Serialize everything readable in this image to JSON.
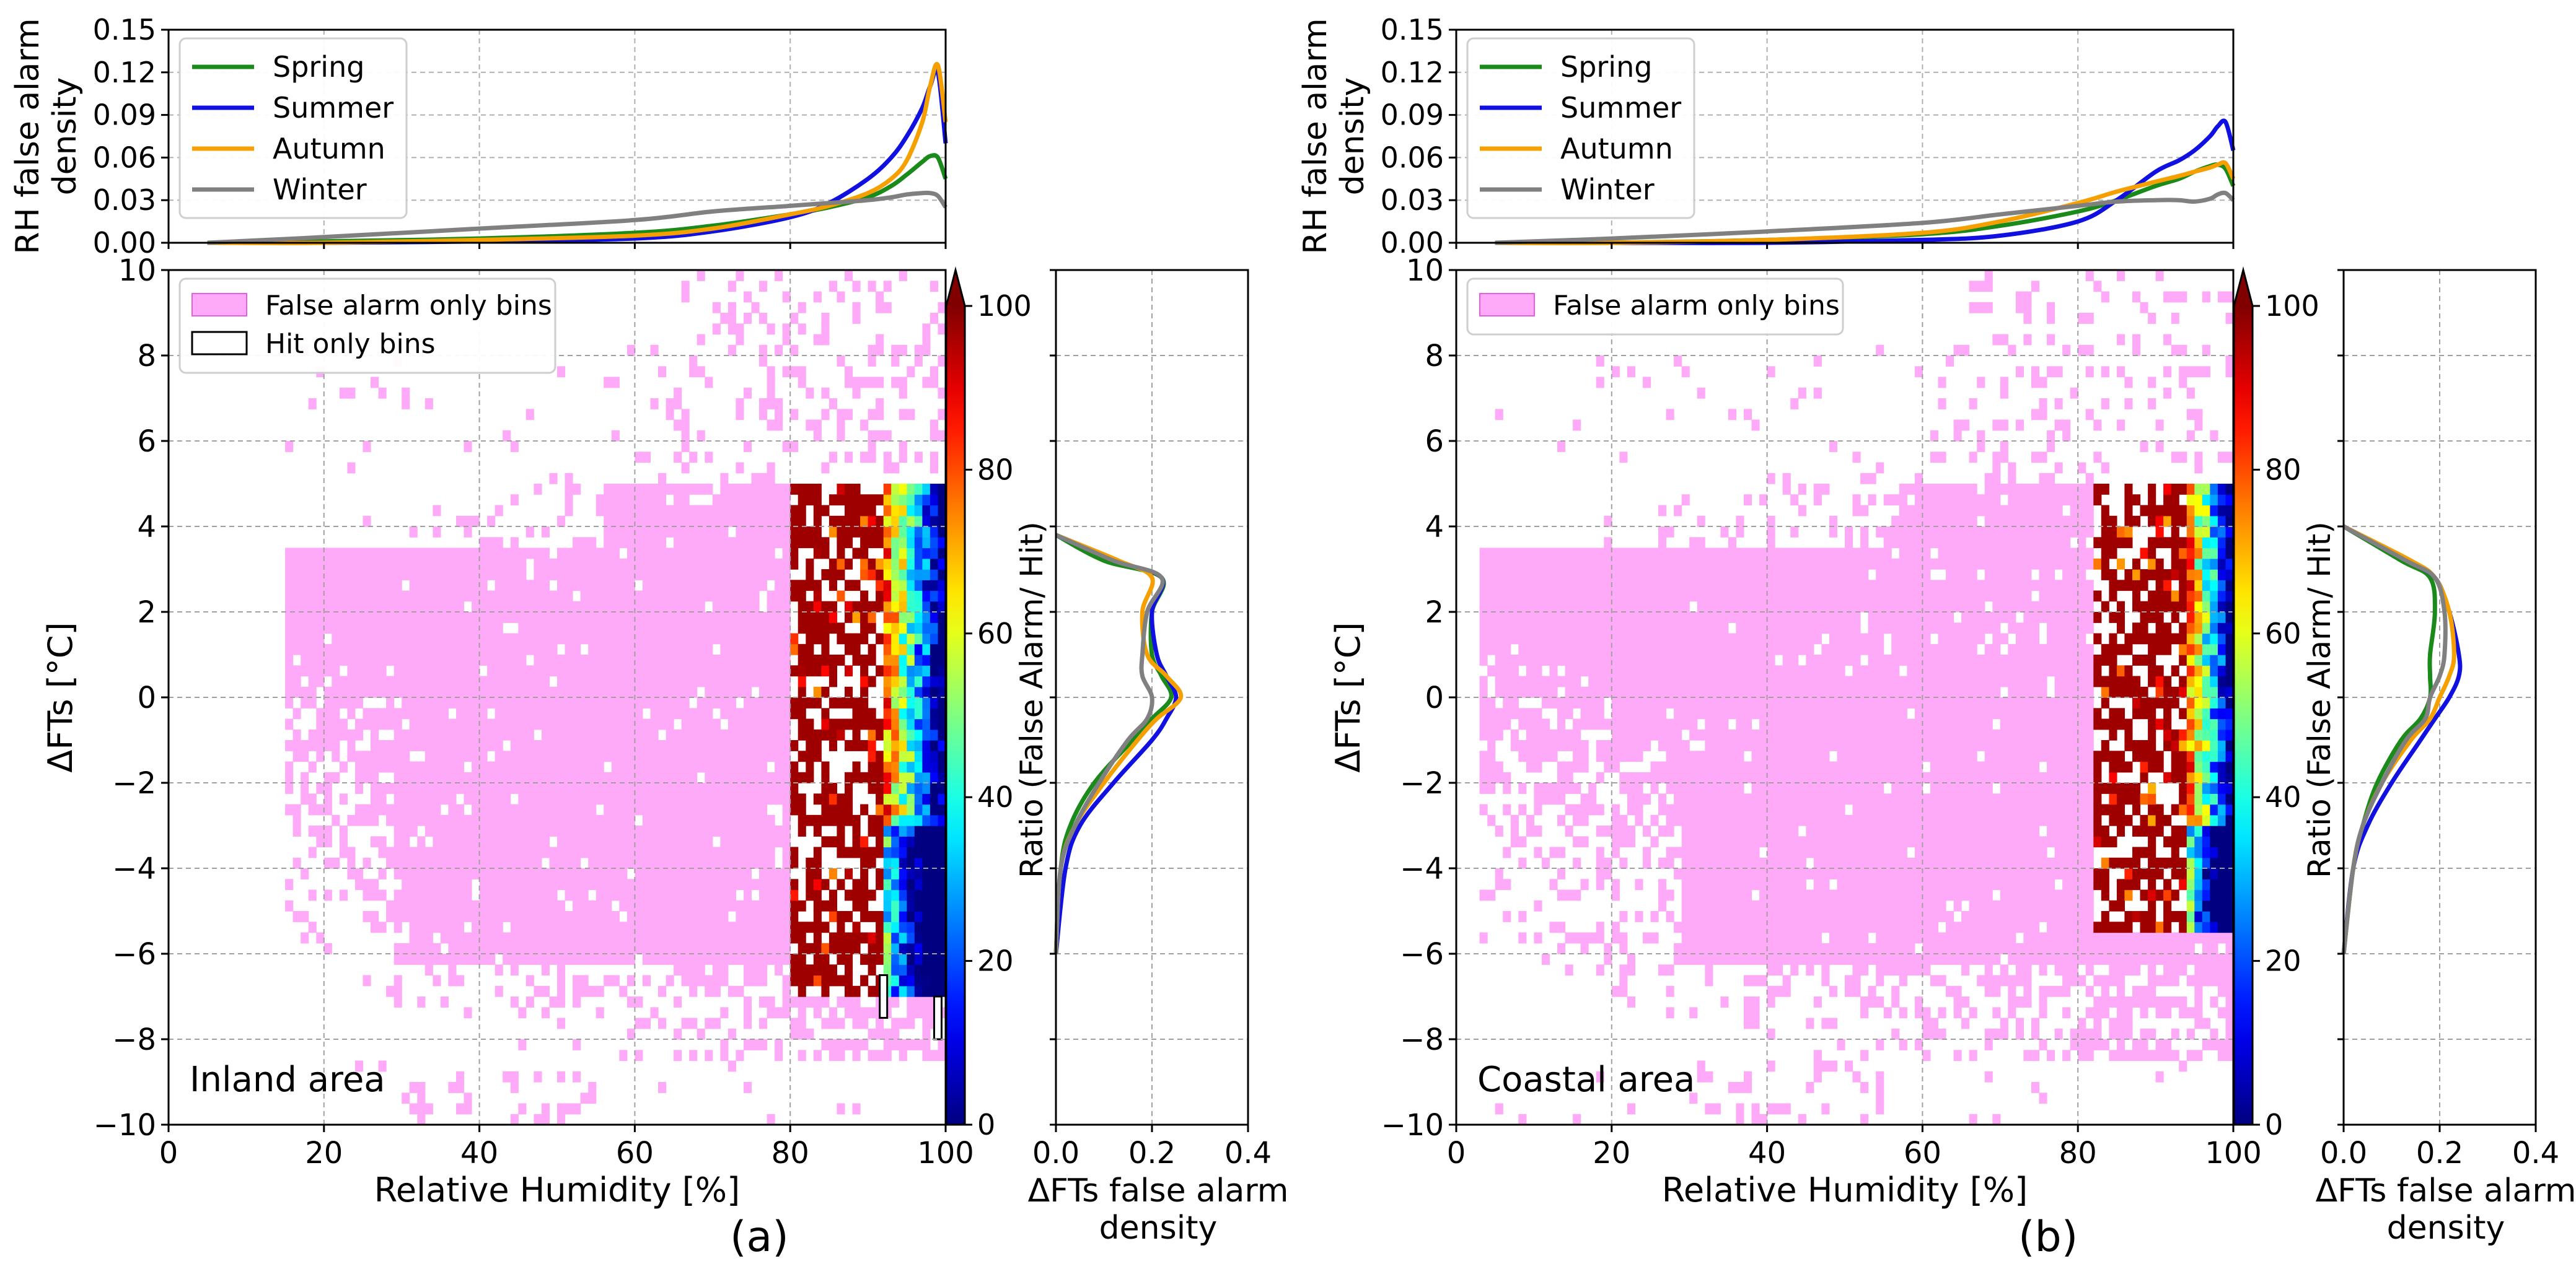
{
  "figure": {
    "panels": [
      {
        "id": "a",
        "label": "(a)",
        "area_text": "Inland area",
        "legend_main": [
          "False alarm only bins",
          "Hit only bins"
        ]
      },
      {
        "id": "b",
        "label": "(b)",
        "area_text": "Coastal area",
        "legend_main": [
          "False alarm only bins"
        ]
      }
    ],
    "colors": {
      "spring": "#1a8a1a",
      "summer": "#1010e0",
      "autumn": "#f5a000",
      "winter": "#808080",
      "false_alarm_bins": "#ffaaf8"
    }
  },
  "chart_data": [
    {
      "panel": "a",
      "type": "line",
      "title": "",
      "ylabel_lines": [
        "RH false alarm",
        "density"
      ],
      "xlim": [
        0,
        100
      ],
      "ylim": [
        0,
        0.15
      ],
      "yticks": [
        "0.00",
        "0.03",
        "0.06",
        "0.09",
        "0.12",
        "0.15"
      ],
      "legend": [
        "Spring",
        "Summer",
        "Autumn",
        "Winter"
      ],
      "x": [
        5,
        20,
        40,
        60,
        70,
        80,
        85,
        90,
        93,
        95,
        97,
        98,
        99,
        100
      ],
      "series": [
        {
          "name": "Spring",
          "values": [
            0.0,
            0.001,
            0.003,
            0.007,
            0.012,
            0.02,
            0.025,
            0.032,
            0.04,
            0.048,
            0.057,
            0.061,
            0.06,
            0.045
          ]
        },
        {
          "name": "Summer",
          "values": [
            0.0,
            0.0,
            0.001,
            0.003,
            0.008,
            0.018,
            0.028,
            0.045,
            0.06,
            0.075,
            0.095,
            0.11,
            0.12,
            0.07
          ]
        },
        {
          "name": "Autumn",
          "values": [
            0.0,
            0.0,
            0.002,
            0.005,
            0.01,
            0.02,
            0.026,
            0.035,
            0.045,
            0.058,
            0.085,
            0.11,
            0.125,
            0.085
          ]
        },
        {
          "name": "Winter",
          "values": [
            0.0,
            0.004,
            0.01,
            0.016,
            0.022,
            0.026,
            0.028,
            0.03,
            0.032,
            0.034,
            0.035,
            0.035,
            0.033,
            0.025
          ]
        }
      ]
    },
    {
      "panel": "a",
      "type": "heatmap",
      "title": "",
      "xlabel": "Relative Humidity [%]",
      "ylabel": "ΔFTs [°C]",
      "xlim": [
        0,
        100
      ],
      "ylim": [
        -10,
        10
      ],
      "xticks": [
        "0",
        "20",
        "40",
        "60",
        "80",
        "100"
      ],
      "yticks": [
        "−10",
        "−8",
        "−6",
        "−4",
        "−2",
        "0",
        "2",
        "4",
        "6",
        "8",
        "10"
      ],
      "colorbar": {
        "label": "Ratio (False Alarm/ Hit)",
        "range": [
          0,
          100
        ],
        "ticks": [
          "0",
          "20",
          "40",
          "60",
          "80",
          "100"
        ]
      },
      "false_alarm_region": {
        "rh_range": [
          15,
          100
        ],
        "dfts_range": [
          -10,
          10
        ]
      },
      "ratio_region": {
        "rh_range": [
          80,
          100
        ],
        "dfts_range": [
          -7,
          5
        ],
        "high_ratio_rh": [
          80,
          92
        ]
      },
      "hit_only_bins": [
        {
          "rh": 92,
          "dfts": -7
        },
        {
          "rh": 99,
          "dfts": -7.5
        }
      ]
    },
    {
      "panel": "a",
      "type": "line",
      "title": "",
      "xlabel_lines": [
        "ΔFTs false alarm",
        "density"
      ],
      "xlim": [
        0,
        0.4
      ],
      "ylim": [
        -10,
        10
      ],
      "xticks": [
        "0.0",
        "0.2",
        "0.4"
      ],
      "y": [
        -6,
        -4,
        -3,
        -2,
        -1,
        -0.5,
        0,
        0.5,
        1,
        2,
        2.8,
        3.2,
        3.8
      ],
      "series": [
        {
          "name": "Spring",
          "values": [
            0.0,
            0.01,
            0.03,
            0.08,
            0.16,
            0.2,
            0.24,
            0.22,
            0.2,
            0.2,
            0.22,
            0.1,
            0.0
          ]
        },
        {
          "name": "Summer",
          "values": [
            0.0,
            0.02,
            0.05,
            0.12,
            0.2,
            0.23,
            0.25,
            0.23,
            0.21,
            0.2,
            0.22,
            0.12,
            0.0
          ]
        },
        {
          "name": "Autumn",
          "values": [
            0.0,
            0.01,
            0.04,
            0.1,
            0.17,
            0.21,
            0.26,
            0.23,
            0.19,
            0.18,
            0.2,
            0.13,
            0.0
          ]
        },
        {
          "name": "Winter",
          "values": [
            0.0,
            0.01,
            0.04,
            0.09,
            0.15,
            0.19,
            0.2,
            0.18,
            0.18,
            0.19,
            0.22,
            0.12,
            0.0
          ]
        }
      ]
    },
    {
      "panel": "b",
      "type": "line",
      "title": "",
      "ylabel_lines": [
        "RH false alarm",
        "density"
      ],
      "xlim": [
        0,
        100
      ],
      "ylim": [
        0,
        0.15
      ],
      "yticks": [
        "0.00",
        "0.03",
        "0.06",
        "0.09",
        "0.12",
        "0.15"
      ],
      "legend": [
        "Spring",
        "Summer",
        "Autumn",
        "Winter"
      ],
      "x": [
        5,
        20,
        40,
        60,
        70,
        80,
        85,
        90,
        93,
        95,
        97,
        98,
        99,
        100
      ],
      "series": [
        {
          "name": "Spring",
          "values": [
            0.0,
            0.0,
            0.002,
            0.006,
            0.012,
            0.022,
            0.03,
            0.04,
            0.045,
            0.05,
            0.054,
            0.055,
            0.052,
            0.04
          ]
        },
        {
          "name": "Summer",
          "values": [
            0.0,
            0.0,
            0.0,
            0.002,
            0.005,
            0.015,
            0.03,
            0.05,
            0.058,
            0.065,
            0.075,
            0.082,
            0.085,
            0.065
          ]
        },
        {
          "name": "Autumn",
          "values": [
            0.0,
            0.0,
            0.002,
            0.007,
            0.015,
            0.028,
            0.036,
            0.043,
            0.047,
            0.05,
            0.053,
            0.055,
            0.056,
            0.045
          ]
        },
        {
          "name": "Winter",
          "values": [
            0.0,
            0.003,
            0.008,
            0.014,
            0.02,
            0.026,
            0.029,
            0.03,
            0.03,
            0.029,
            0.031,
            0.034,
            0.035,
            0.03
          ]
        }
      ]
    },
    {
      "panel": "b",
      "type": "heatmap",
      "title": "",
      "xlabel": "Relative Humidity [%]",
      "ylabel": "ΔFTs [°C]",
      "xlim": [
        0,
        100
      ],
      "ylim": [
        -10,
        10
      ],
      "xticks": [
        "0",
        "20",
        "40",
        "60",
        "80",
        "100"
      ],
      "yticks": [
        "−10",
        "−8",
        "−6",
        "−4",
        "−2",
        "0",
        "2",
        "4",
        "6",
        "8",
        "10"
      ],
      "colorbar": {
        "label": "Ratio (False Alarm/ Hit)",
        "range": [
          0,
          100
        ],
        "ticks": [
          "0",
          "20",
          "40",
          "60",
          "80",
          "100"
        ]
      },
      "false_alarm_region": {
        "rh_range": [
          3,
          100
        ],
        "dfts_range": [
          -9,
          10
        ]
      },
      "ratio_region": {
        "rh_range": [
          82,
          100
        ],
        "dfts_range": [
          -5.5,
          5
        ],
        "high_ratio_rh": [
          82,
          94
        ]
      },
      "hit_only_bins": []
    },
    {
      "panel": "b",
      "type": "line",
      "title": "",
      "xlabel_lines": [
        "ΔFTs false alarm",
        "density"
      ],
      "xlim": [
        0,
        0.4
      ],
      "ylim": [
        -10,
        10
      ],
      "xticks": [
        "0.0",
        "0.2",
        "0.4"
      ],
      "y": [
        -6,
        -4,
        -3,
        -2,
        -1,
        -0.5,
        0,
        0.5,
        1,
        2,
        2.8,
        3.2,
        4
      ],
      "series": [
        {
          "name": "Spring",
          "values": [
            0.0,
            0.02,
            0.04,
            0.07,
            0.12,
            0.16,
            0.18,
            0.18,
            0.18,
            0.19,
            0.18,
            0.12,
            0.0
          ]
        },
        {
          "name": "Summer",
          "values": [
            0.0,
            0.02,
            0.05,
            0.1,
            0.16,
            0.19,
            0.22,
            0.24,
            0.24,
            0.22,
            0.19,
            0.13,
            0.0
          ]
        },
        {
          "name": "Autumn",
          "values": [
            0.0,
            0.02,
            0.04,
            0.08,
            0.14,
            0.18,
            0.2,
            0.22,
            0.23,
            0.22,
            0.19,
            0.14,
            0.0
          ]
        },
        {
          "name": "Winter",
          "values": [
            0.0,
            0.02,
            0.04,
            0.08,
            0.13,
            0.17,
            0.18,
            0.2,
            0.21,
            0.21,
            0.19,
            0.13,
            0.0
          ]
        }
      ]
    }
  ]
}
